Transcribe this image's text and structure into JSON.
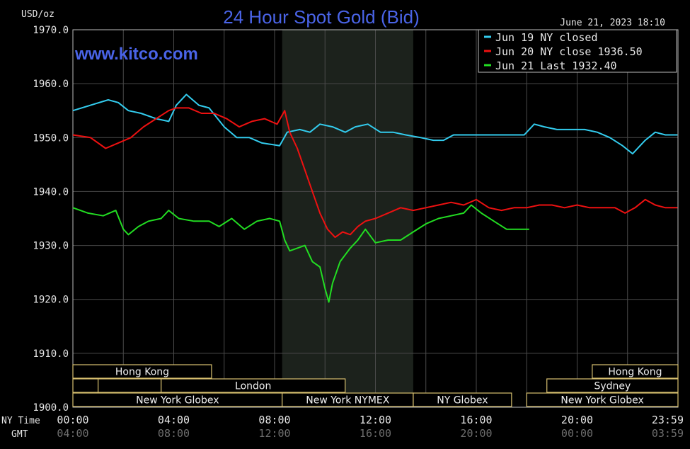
{
  "chart_data": {
    "type": "line",
    "title": "24 Hour Spot Gold (Bid)",
    "watermark": "www.kitco.com",
    "unit_label": "USD/oz",
    "timestamp": "June 21, 2023 18:10",
    "ylim": [
      1900,
      1970
    ],
    "y_ticks": [
      "1970.0",
      "1960.0",
      "1950.0",
      "1940.0",
      "1930.0",
      "1920.0",
      "1910.0",
      "1900.0"
    ],
    "x_row_labels": {
      "ny": "NY Time",
      "gmt": "GMT"
    },
    "x_ticks_ny": [
      "00:00",
      "04:00",
      "08:00",
      "12:00",
      "16:00",
      "20:00",
      "23:59"
    ],
    "x_ticks_gmt": [
      "04:00",
      "08:00",
      "12:00",
      "16:00",
      "20:00",
      "00:00",
      "03:59"
    ],
    "grid": true,
    "legend_position": "top-right",
    "series": [
      {
        "name": "Jun 19 NY closed",
        "color": "#33ccee",
        "points": [
          [
            0,
            1955
          ],
          [
            0.7,
            1956
          ],
          [
            1.4,
            1957
          ],
          [
            1.8,
            1956.5
          ],
          [
            2.2,
            1955
          ],
          [
            2.7,
            1954.5
          ],
          [
            3.3,
            1953.5
          ],
          [
            3.8,
            1953
          ],
          [
            4.1,
            1956
          ],
          [
            4.5,
            1958
          ],
          [
            5.0,
            1956
          ],
          [
            5.4,
            1955.5
          ],
          [
            6.0,
            1952
          ],
          [
            6.5,
            1950
          ],
          [
            7.0,
            1950
          ],
          [
            7.5,
            1949
          ],
          [
            8.2,
            1948.5
          ],
          [
            8.5,
            1951
          ],
          [
            9.0,
            1951.5
          ],
          [
            9.4,
            1951
          ],
          [
            9.8,
            1952.5
          ],
          [
            10.3,
            1952
          ],
          [
            10.8,
            1951
          ],
          [
            11.2,
            1952
          ],
          [
            11.7,
            1952.5
          ],
          [
            12.2,
            1951
          ],
          [
            12.7,
            1951
          ],
          [
            13.2,
            1950.5
          ],
          [
            13.8,
            1950
          ],
          [
            14.3,
            1949.5
          ],
          [
            14.7,
            1949.5
          ],
          [
            15.1,
            1950.5
          ],
          [
            17.9,
            1950.5
          ],
          [
            18.3,
            1952.5
          ],
          [
            18.7,
            1952
          ],
          [
            19.2,
            1951.5
          ],
          [
            19.8,
            1951.5
          ],
          [
            20.3,
            1951.5
          ],
          [
            20.8,
            1951
          ],
          [
            21.3,
            1950
          ],
          [
            21.8,
            1948.5
          ],
          [
            22.2,
            1947
          ],
          [
            22.7,
            1949.5
          ],
          [
            23.1,
            1951
          ],
          [
            23.5,
            1950.5
          ],
          [
            23.98,
            1950.5
          ]
        ]
      },
      {
        "name": "Jun 20 NY close 1936.50",
        "color": "#ee1111",
        "points": [
          [
            0,
            1950.5
          ],
          [
            0.7,
            1950
          ],
          [
            1.3,
            1948
          ],
          [
            1.8,
            1949
          ],
          [
            2.3,
            1950
          ],
          [
            2.8,
            1952
          ],
          [
            3.3,
            1953.5
          ],
          [
            3.8,
            1955
          ],
          [
            4.1,
            1955.5
          ],
          [
            4.6,
            1955.5
          ],
          [
            5.1,
            1954.5
          ],
          [
            5.6,
            1954.5
          ],
          [
            6.1,
            1953.5
          ],
          [
            6.6,
            1952
          ],
          [
            7.1,
            1953
          ],
          [
            7.6,
            1953.5
          ],
          [
            8.1,
            1952.5
          ],
          [
            8.4,
            1955
          ],
          [
            8.6,
            1951
          ],
          [
            8.9,
            1948
          ],
          [
            9.2,
            1944
          ],
          [
            9.5,
            1940
          ],
          [
            9.8,
            1936
          ],
          [
            10.1,
            1933
          ],
          [
            10.4,
            1931.5
          ],
          [
            10.7,
            1932.5
          ],
          [
            11.0,
            1932
          ],
          [
            11.3,
            1933.5
          ],
          [
            11.6,
            1934.5
          ],
          [
            12.0,
            1935
          ],
          [
            12.5,
            1936
          ],
          [
            13.0,
            1937
          ],
          [
            13.5,
            1936.5
          ],
          [
            14.0,
            1937
          ],
          [
            14.5,
            1937.5
          ],
          [
            15.0,
            1938
          ],
          [
            15.5,
            1937.5
          ],
          [
            16.0,
            1938.5
          ],
          [
            16.5,
            1937
          ],
          [
            17.0,
            1936.5
          ],
          [
            17.5,
            1937
          ],
          [
            18.0,
            1937
          ],
          [
            18.5,
            1937.5
          ],
          [
            19.0,
            1937.5
          ],
          [
            19.5,
            1937
          ],
          [
            20.0,
            1937.5
          ],
          [
            20.5,
            1937
          ],
          [
            21.0,
            1937
          ],
          [
            21.5,
            1937
          ],
          [
            21.9,
            1936
          ],
          [
            22.3,
            1937
          ],
          [
            22.7,
            1938.5
          ],
          [
            23.1,
            1937.5
          ],
          [
            23.5,
            1937
          ],
          [
            23.98,
            1937
          ]
        ]
      },
      {
        "name": "Jun 21 Last 1932.40",
        "color": "#22dd22",
        "points": [
          [
            0,
            1937
          ],
          [
            0.6,
            1936
          ],
          [
            1.2,
            1935.5
          ],
          [
            1.7,
            1936.5
          ],
          [
            2.0,
            1933
          ],
          [
            2.2,
            1932
          ],
          [
            2.6,
            1933.5
          ],
          [
            3.0,
            1934.5
          ],
          [
            3.5,
            1935
          ],
          [
            3.8,
            1936.5
          ],
          [
            4.2,
            1935
          ],
          [
            4.8,
            1934.5
          ],
          [
            5.4,
            1934.5
          ],
          [
            5.8,
            1933.5
          ],
          [
            6.3,
            1935
          ],
          [
            6.8,
            1933
          ],
          [
            7.3,
            1934.5
          ],
          [
            7.8,
            1935
          ],
          [
            8.2,
            1934.5
          ],
          [
            8.4,
            1931
          ],
          [
            8.6,
            1929
          ],
          [
            8.9,
            1929.5
          ],
          [
            9.2,
            1930
          ],
          [
            9.5,
            1927
          ],
          [
            9.8,
            1926
          ],
          [
            10.0,
            1922
          ],
          [
            10.15,
            1919.5
          ],
          [
            10.3,
            1923
          ],
          [
            10.6,
            1927
          ],
          [
            11.0,
            1929.5
          ],
          [
            11.3,
            1931
          ],
          [
            11.6,
            1933
          ],
          [
            12.0,
            1930.5
          ],
          [
            12.5,
            1931
          ],
          [
            13.0,
            1931
          ],
          [
            13.5,
            1932.5
          ],
          [
            14.0,
            1934
          ],
          [
            14.5,
            1935
          ],
          [
            15.0,
            1935.5
          ],
          [
            15.5,
            1936
          ],
          [
            15.8,
            1937.5
          ],
          [
            16.2,
            1936
          ],
          [
            16.7,
            1934.5
          ],
          [
            17.2,
            1933
          ],
          [
            17.6,
            1933
          ],
          [
            18.1,
            1933
          ]
        ]
      }
    ],
    "sessions": [
      {
        "label": "Hong Kong"
      },
      {
        "label": "London"
      },
      {
        "label": "New York Globex"
      },
      {
        "label": "New York NYMEX"
      },
      {
        "label": "NY Globex"
      },
      {
        "label": "Hong Kong"
      },
      {
        "label": "Sydney"
      },
      {
        "label": "New York Globex"
      }
    ]
  }
}
